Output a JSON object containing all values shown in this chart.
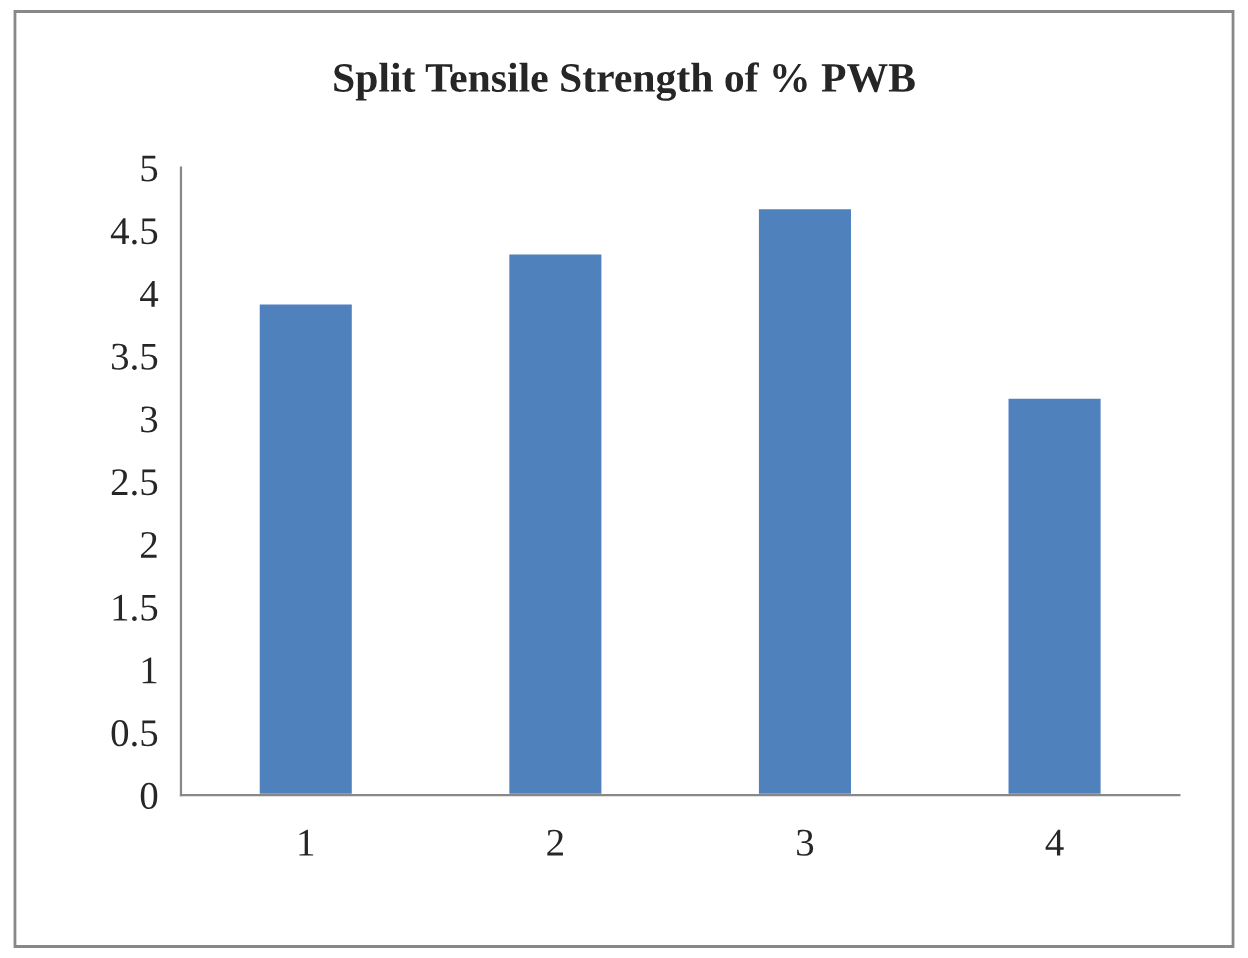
{
  "chart_data": {
    "type": "bar",
    "title": "Split Tensile Strength of % PWB",
    "categories": [
      "1",
      "2",
      "3",
      "4"
    ],
    "values": [
      3.92,
      4.32,
      4.68,
      3.17
    ],
    "color": "#4f81bd",
    "ylim": [
      0,
      5
    ],
    "yticks": [
      0,
      0.5,
      1,
      1.5,
      2,
      2.5,
      3,
      3.5,
      4,
      4.5,
      5
    ],
    "grid": false,
    "legend": false
  }
}
